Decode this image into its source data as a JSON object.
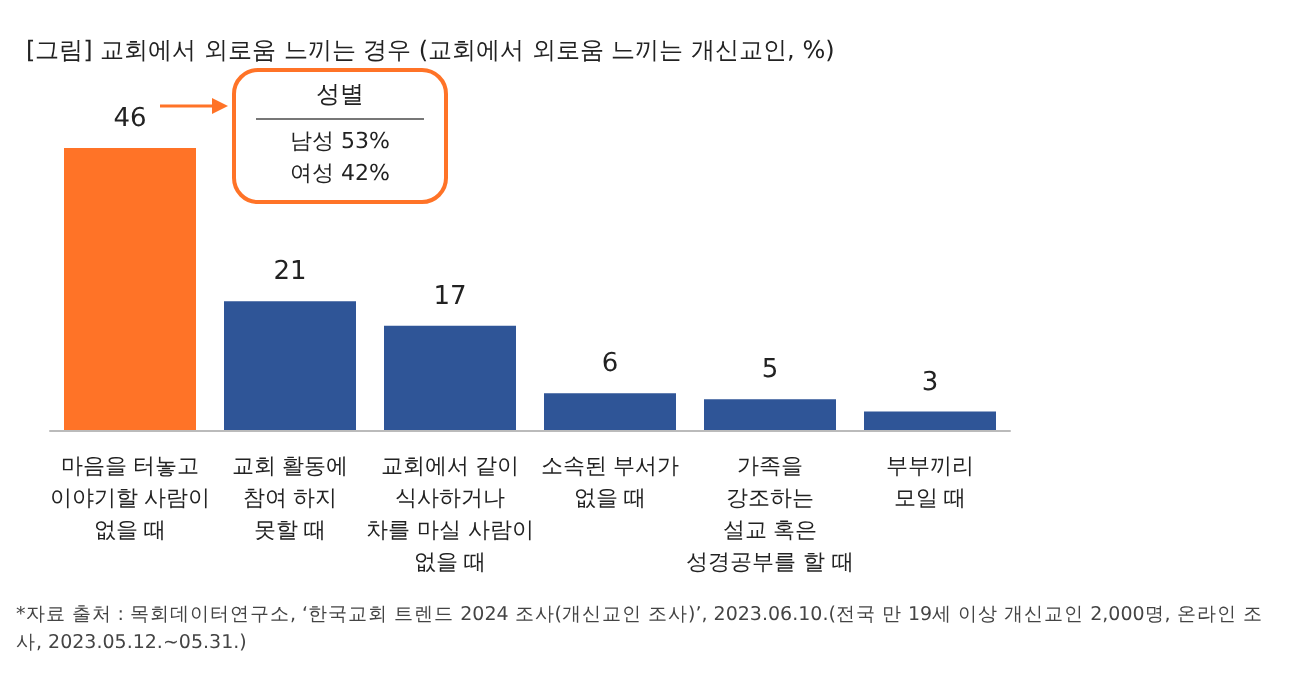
{
  "chart_data": {
    "type": "bar",
    "title": "[그림] 교회에서 외로움 느끼는 경우 (교회에서 외로움 느끼는 개신교인, %)",
    "categories": [
      "마음을 터놓고\n이야기할 사람이\n없을 때",
      "교회 활동에\n참여 하지\n못할 때",
      "교회에서 같이\n식사하거나\n차를 마실 사람이\n없을 때",
      "소속된 부서가\n없을 때",
      "가족을\n강조하는\n설교 혹은\n성경공부를 할 때",
      "부부끼리\n모일 때"
    ],
    "values": [
      46,
      21,
      17,
      6,
      5,
      3
    ],
    "colors": [
      "#ff7327",
      "#2f5597",
      "#2f5597",
      "#2f5597",
      "#2f5597",
      "#2f5597"
    ],
    "data_labels": true,
    "grid": false,
    "annotations": [
      "성별\n남성 53%\n여성 42%",
      "*자료 출처 : 목회데이터연구소, ‘한국교회 트렌드 2024 조사(개신교인 조사)’, 2023.06.10.(전국 만 19세 이상 개신교인 2,000명, 온라인 조사, 2023.05.12.~05.31.)"
    ]
  }
}
